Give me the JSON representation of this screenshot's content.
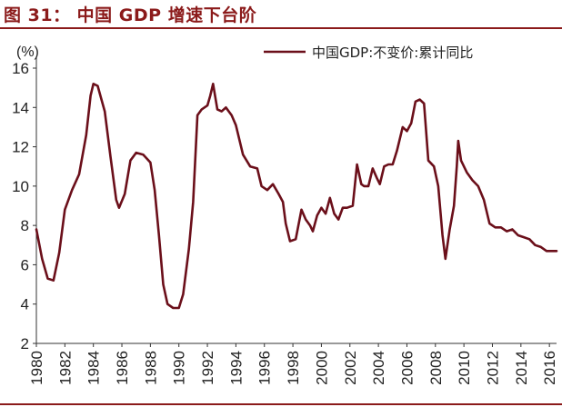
{
  "figure": {
    "title": "图 31： 中国 GDP 增速下台阶"
  },
  "colors": {
    "accent": "#8B1A1A",
    "series": "#6B0F1A"
  },
  "chart_data": {
    "type": "line",
    "ylabel": "(%)",
    "ylim": [
      2,
      16
    ],
    "yticks": [
      2,
      4,
      6,
      8,
      10,
      12,
      14,
      16
    ],
    "xlim": [
      1980,
      2016.5
    ],
    "xticks": [
      "1980",
      "1982",
      "1984",
      "1986",
      "1988",
      "1990",
      "1992",
      "1994",
      "1996",
      "1998",
      "2000",
      "2002",
      "2004",
      "2006",
      "2008",
      "2010",
      "2012",
      "2014",
      "2016"
    ],
    "grid": false,
    "legend": "top-right",
    "series": [
      {
        "name": "中国GDP:不变价:累计同比",
        "points": [
          [
            1980.0,
            7.8
          ],
          [
            1980.4,
            6.3
          ],
          [
            1980.8,
            5.3
          ],
          [
            1981.2,
            5.2
          ],
          [
            1981.6,
            6.6
          ],
          [
            1982.0,
            8.8
          ],
          [
            1982.5,
            9.8
          ],
          [
            1983.0,
            10.6
          ],
          [
            1983.5,
            12.6
          ],
          [
            1983.8,
            14.6
          ],
          [
            1984.0,
            15.2
          ],
          [
            1984.3,
            15.1
          ],
          [
            1984.8,
            13.8
          ],
          [
            1985.2,
            11.5
          ],
          [
            1985.6,
            9.3
          ],
          [
            1985.8,
            8.9
          ],
          [
            1986.2,
            9.6
          ],
          [
            1986.6,
            11.3
          ],
          [
            1987.0,
            11.7
          ],
          [
            1987.5,
            11.6
          ],
          [
            1988.0,
            11.2
          ],
          [
            1988.3,
            9.8
          ],
          [
            1988.6,
            7.5
          ],
          [
            1988.9,
            5.0
          ],
          [
            1989.2,
            4.0
          ],
          [
            1989.6,
            3.8
          ],
          [
            1990.0,
            3.8
          ],
          [
            1990.3,
            4.5
          ],
          [
            1990.7,
            6.8
          ],
          [
            1991.0,
            9.2
          ],
          [
            1991.3,
            13.6
          ],
          [
            1991.6,
            13.9
          ],
          [
            1992.0,
            14.1
          ],
          [
            1992.2,
            14.6
          ],
          [
            1992.4,
            15.2
          ],
          [
            1992.7,
            13.9
          ],
          [
            1993.0,
            13.8
          ],
          [
            1993.3,
            14.0
          ],
          [
            1993.7,
            13.6
          ],
          [
            1994.0,
            13.1
          ],
          [
            1994.5,
            11.6
          ],
          [
            1995.0,
            11.0
          ],
          [
            1995.5,
            10.9
          ],
          [
            1995.8,
            10.0
          ],
          [
            1996.2,
            9.8
          ],
          [
            1996.6,
            10.1
          ],
          [
            1997.0,
            9.6
          ],
          [
            1997.3,
            9.2
          ],
          [
            1997.5,
            8.1
          ],
          [
            1997.8,
            7.2
          ],
          [
            1998.2,
            7.3
          ],
          [
            1998.6,
            8.8
          ],
          [
            1998.9,
            8.3
          ],
          [
            1999.2,
            8.0
          ],
          [
            1999.4,
            7.7
          ],
          [
            1999.7,
            8.5
          ],
          [
            2000.0,
            8.9
          ],
          [
            2000.3,
            8.6
          ],
          [
            2000.6,
            9.4
          ],
          [
            2000.9,
            8.6
          ],
          [
            2001.2,
            8.3
          ],
          [
            2001.5,
            8.9
          ],
          [
            2001.8,
            8.9
          ],
          [
            2002.2,
            9.0
          ],
          [
            2002.5,
            11.1
          ],
          [
            2002.8,
            10.1
          ],
          [
            2003.0,
            10.0
          ],
          [
            2003.3,
            10.0
          ],
          [
            2003.6,
            10.9
          ],
          [
            2003.9,
            10.4
          ],
          [
            2004.1,
            10.1
          ],
          [
            2004.4,
            11.0
          ],
          [
            2004.7,
            11.1
          ],
          [
            2005.0,
            11.1
          ],
          [
            2005.3,
            11.8
          ],
          [
            2005.7,
            13.0
          ],
          [
            2006.0,
            12.8
          ],
          [
            2006.3,
            13.2
          ],
          [
            2006.6,
            14.3
          ],
          [
            2006.9,
            14.4
          ],
          [
            2007.2,
            14.2
          ],
          [
            2007.5,
            11.3
          ],
          [
            2007.9,
            11.0
          ],
          [
            2008.2,
            10.0
          ],
          [
            2008.5,
            7.5
          ],
          [
            2008.7,
            6.3
          ],
          [
            2009.0,
            7.8
          ],
          [
            2009.3,
            9.0
          ],
          [
            2009.5,
            11.0
          ],
          [
            2009.6,
            12.3
          ],
          [
            2009.8,
            11.3
          ],
          [
            2010.2,
            10.7
          ],
          [
            2010.6,
            10.3
          ],
          [
            2011.0,
            10.0
          ],
          [
            2011.4,
            9.3
          ],
          [
            2011.8,
            8.1
          ],
          [
            2012.2,
            7.9
          ],
          [
            2012.6,
            7.9
          ],
          [
            2013.0,
            7.7
          ],
          [
            2013.4,
            7.8
          ],
          [
            2013.8,
            7.5
          ],
          [
            2014.2,
            7.4
          ],
          [
            2014.6,
            7.3
          ],
          [
            2015.0,
            7.0
          ],
          [
            2015.4,
            6.9
          ],
          [
            2015.8,
            6.7
          ],
          [
            2016.0,
            6.7
          ],
          [
            2016.5,
            6.7
          ]
        ]
      }
    ]
  }
}
